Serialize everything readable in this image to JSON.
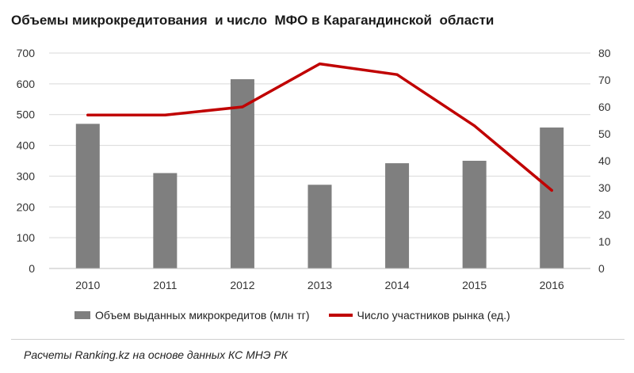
{
  "chart_data": {
    "type": "bar+line",
    "title": "Объемы микрокредитования  и число  МФО в Карагандинской  области",
    "categories": [
      "2010",
      "2011",
      "2012",
      "2013",
      "2014",
      "2015",
      "2016"
    ],
    "series": [
      {
        "name": "Объем выданных микрокредитов (млн тг)",
        "type": "bar",
        "axis": "left",
        "color": "#7f7f7f",
        "values": [
          470,
          310,
          615,
          272,
          342,
          350,
          458
        ]
      },
      {
        "name": "Число участников рынка (ед.)",
        "type": "line",
        "axis": "right",
        "color": "#c00000",
        "values": [
          57,
          57,
          60,
          76,
          72,
          53,
          29
        ]
      }
    ],
    "y_left": {
      "min": 0,
      "max": 700,
      "ticks": [
        "0",
        "100",
        "200",
        "300",
        "400",
        "500",
        "600",
        "700"
      ]
    },
    "y_right": {
      "min": 0,
      "max": 80,
      "ticks": [
        "0",
        "10",
        "20",
        "30",
        "40",
        "50",
        "60",
        "70",
        "80"
      ]
    },
    "grid": true,
    "legend_position": "bottom"
  },
  "source": "Расчеты Ranking.kz на основе данных  КС МНЭ РК"
}
